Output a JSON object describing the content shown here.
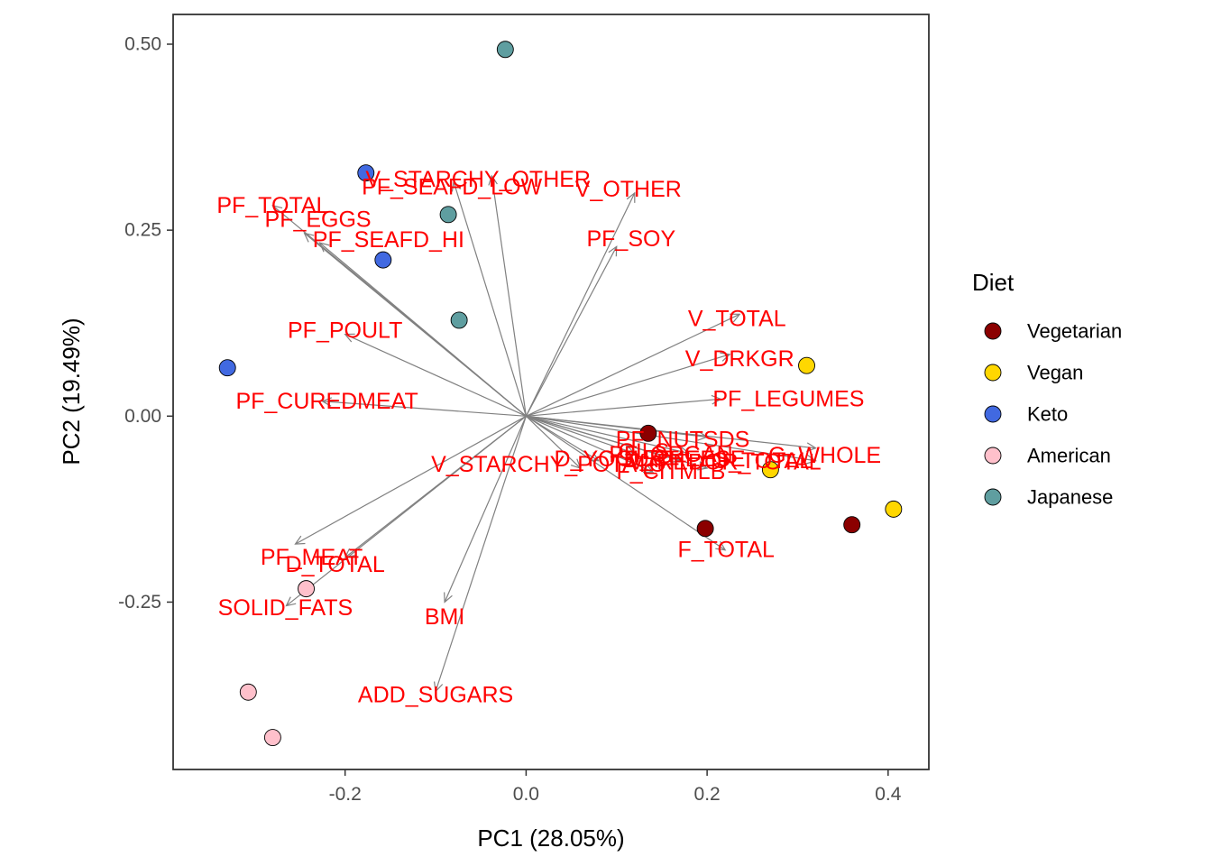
{
  "chart_data": {
    "type": "scatter",
    "subtype": "pca-biplot",
    "xlabel": "PC1 (28.05%)",
    "ylabel": "PC2 (19.49%)",
    "xlim": [
      -0.39,
      0.445
    ],
    "ylim": [
      -0.475,
      0.54
    ],
    "xticks": [
      -0.2,
      0.0,
      0.2,
      0.4
    ],
    "xtick_labels": [
      "-0.2",
      "0.0",
      "0.2",
      "0.4"
    ],
    "yticks": [
      -0.25,
      0.0,
      0.25,
      0.5
    ],
    "ytick_labels": [
      "-0.25",
      "0.00",
      "0.25",
      "0.50"
    ],
    "grid": false,
    "legend": {
      "title": "Diet",
      "position": "right",
      "entries": [
        {
          "name": "Vegetarian",
          "color": "#8b0000"
        },
        {
          "name": "Vegan",
          "color": "#ffd700"
        },
        {
          "name": "Keto",
          "color": "#4169e1"
        },
        {
          "name": "American",
          "color": "#ffc0cb"
        },
        {
          "name": "Japanese",
          "color": "#5f9ea0"
        }
      ]
    },
    "series": [
      {
        "name": "Vegetarian",
        "points": [
          [
            0.135,
            -0.023
          ],
          [
            0.198,
            -0.151
          ],
          [
            0.36,
            -0.146
          ]
        ]
      },
      {
        "name": "Vegan",
        "points": [
          [
            0.31,
            0.068
          ],
          [
            0.27,
            -0.072
          ],
          [
            0.406,
            -0.125
          ]
        ]
      },
      {
        "name": "Keto",
        "points": [
          [
            -0.177,
            0.327
          ],
          [
            -0.158,
            0.21
          ],
          [
            -0.33,
            0.065
          ]
        ]
      },
      {
        "name": "American",
        "points": [
          [
            -0.243,
            -0.232
          ],
          [
            -0.307,
            -0.371
          ],
          [
            -0.28,
            -0.432
          ]
        ]
      },
      {
        "name": "Japanese",
        "points": [
          [
            -0.023,
            0.493
          ],
          [
            -0.086,
            0.271
          ],
          [
            -0.074,
            0.129
          ]
        ]
      }
    ],
    "loadings": [
      {
        "name": "PF_TOTAL",
        "x": -0.28,
        "y": 0.283,
        "lx": -0.28,
        "ly": 0.283
      },
      {
        "name": "PF_EGGS",
        "x": -0.245,
        "y": 0.246,
        "lx": -0.23,
        "ly": 0.264
      },
      {
        "name": "PF_SEAFD_HI",
        "x": -0.228,
        "y": 0.233,
        "lx": -0.152,
        "ly": 0.237
      },
      {
        "name": "PF_SEAFD_LOW",
        "x": -0.08,
        "y": 0.315,
        "lx": -0.082,
        "ly": 0.308
      },
      {
        "name": "V_STARCHY_OTHER",
        "x": -0.038,
        "y": 0.323,
        "lx": -0.053,
        "ly": 0.318
      },
      {
        "name": "V_OTHER",
        "x": 0.12,
        "y": 0.3,
        "lx": 0.113,
        "ly": 0.305
      },
      {
        "name": "PF_SOY",
        "x": 0.1,
        "y": 0.228,
        "lx": 0.116,
        "ly": 0.238
      },
      {
        "name": "V_TOTAL",
        "x": 0.236,
        "y": 0.137,
        "lx": 0.233,
        "ly": 0.131
      },
      {
        "name": "V_DRKGR",
        "x": 0.225,
        "y": 0.083,
        "lx": 0.236,
        "ly": 0.077
      },
      {
        "name": "PF_LEGUMES",
        "x": 0.215,
        "y": 0.023,
        "lx": 0.29,
        "ly": 0.023
      },
      {
        "name": "PF_NUTSDS",
        "x": 0.2,
        "y": -0.028,
        "lx": 0.173,
        "ly": -0.032
      },
      {
        "name": "G_WHOLE",
        "x": 0.32,
        "y": -0.043,
        "lx": 0.33,
        "ly": -0.053
      },
      {
        "name": "PF_ORGAN",
        "x": 0.18,
        "y": -0.05,
        "lx": 0.16,
        "ly": -0.052
      },
      {
        "name": "D_CHEESE",
        "x": 0.17,
        "y": -0.06,
        "lx": 0.175,
        "ly": -0.058
      },
      {
        "name": "G_TOTAL",
        "x": 0.32,
        "y": -0.06,
        "lx": 0.26,
        "ly": -0.06
      },
      {
        "name": "OILS",
        "x": 0.12,
        "y": -0.05,
        "lx": 0.13,
        "ly": -0.048
      },
      {
        "name": "D_YOGURT",
        "x": 0.08,
        "y": -0.06,
        "lx": 0.1,
        "ly": -0.058
      },
      {
        "name": "V_REDOR_TOTAL",
        "x": 0.2,
        "y": -0.07,
        "lx": 0.22,
        "ly": -0.062
      },
      {
        "name": "F_CITMLB",
        "x": 0.14,
        "y": -0.075,
        "lx": 0.16,
        "ly": -0.075
      },
      {
        "name": "V_STARCHY_POTATO",
        "x": 0.06,
        "y": -0.07,
        "lx": 0.025,
        "ly": -0.065
      },
      {
        "name": "F_TOTAL",
        "x": 0.22,
        "y": -0.18,
        "lx": 0.221,
        "ly": -0.18
      },
      {
        "name": "PF_MEAT",
        "x": -0.255,
        "y": -0.172,
        "lx": -0.237,
        "ly": -0.19
      },
      {
        "name": "D_TOTAL",
        "x": -0.2,
        "y": -0.19,
        "lx": -0.211,
        "ly": -0.2
      },
      {
        "name": "PF_POULT",
        "x": -0.2,
        "y": 0.11,
        "lx": -0.2,
        "ly": 0.115
      },
      {
        "name": "PF_CUREDMEAT",
        "x": -0.225,
        "y": 0.02,
        "lx": -0.22,
        "ly": 0.02
      },
      {
        "name": "SOLID_FATS",
        "x": -0.265,
        "y": -0.255,
        "lx": -0.266,
        "ly": -0.258
      },
      {
        "name": "BMI",
        "x": -0.09,
        "y": -0.25,
        "lx": -0.09,
        "ly": -0.27
      },
      {
        "name": "ADD_SUGARS",
        "x": -0.1,
        "y": -0.37,
        "lx": -0.1,
        "ly": -0.375
      }
    ]
  }
}
